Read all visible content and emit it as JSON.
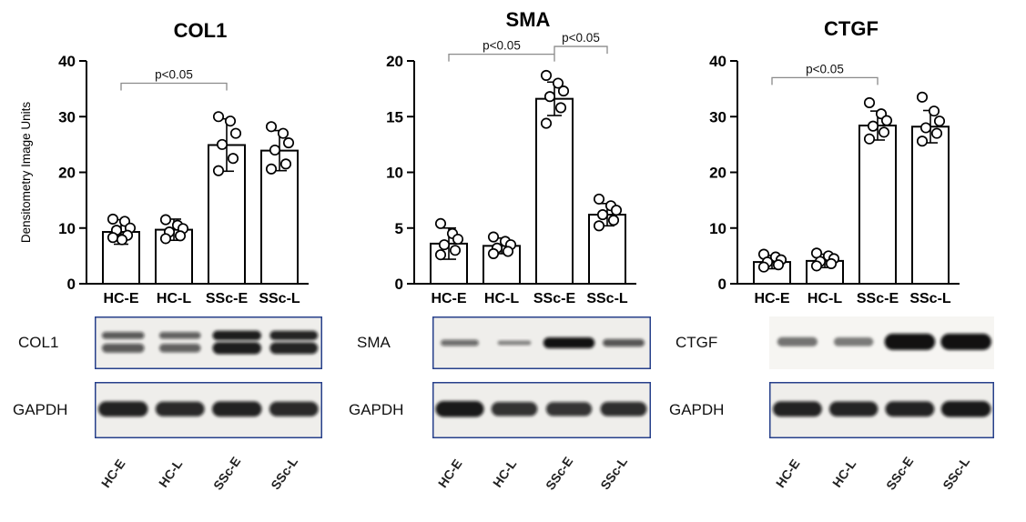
{
  "chart_data": [
    {
      "type": "bar",
      "title": "COL1",
      "ylabel": "Densitometry Image Units",
      "xlabel": "",
      "categories": [
        "HC-E",
        "HC-L",
        "SSc-E",
        "SSc-L"
      ],
      "values": [
        9.3,
        9.7,
        24.9,
        23.9
      ],
      "errors": [
        2.2,
        1.9,
        4.7,
        3.6
      ],
      "points": [
        [
          11.6,
          11.2,
          10.0,
          9.6,
          8.7,
          8.3,
          7.9
        ],
        [
          11.5,
          10.5,
          9.9,
          9.3,
          8.6,
          8.1
        ],
        [
          30.0,
          29.2,
          27.0,
          25.0,
          22.5,
          20.3
        ],
        [
          28.2,
          27.0,
          25.3,
          24.0,
          21.5,
          20.6
        ]
      ],
      "ylim": [
        0,
        40
      ],
      "yticks": [
        0,
        10,
        20,
        30,
        40
      ],
      "grid": false,
      "annotations": [
        {
          "text": "p<0.05",
          "from": 0,
          "to": 2,
          "y": 36
        }
      ]
    },
    {
      "type": "bar",
      "title": "SMA",
      "ylabel": "",
      "xlabel": "",
      "categories": [
        "HC-E",
        "HC-L",
        "SSc-E",
        "SSc-L"
      ],
      "values": [
        3.6,
        3.4,
        16.6,
        6.2
      ],
      "errors": [
        1.4,
        0.7,
        1.5,
        1.0
      ],
      "points": [
        [
          5.4,
          4.5,
          4.0,
          3.5,
          3.0,
          2.6
        ],
        [
          4.2,
          3.8,
          3.5,
          3.2,
          2.9,
          2.7
        ],
        [
          18.7,
          18.0,
          17.3,
          16.8,
          15.8,
          14.4
        ],
        [
          7.6,
          7.0,
          6.6,
          6.2,
          5.7,
          5.2
        ]
      ],
      "ylim": [
        0,
        20
      ],
      "yticks": [
        0,
        5,
        10,
        15,
        20
      ],
      "grid": false,
      "annotations": [
        {
          "text": "p<0.05",
          "from": 0,
          "to": 2,
          "y": 20.6
        },
        {
          "text": "p<0.05",
          "from": 2,
          "to": 3,
          "y": 21.3
        }
      ]
    },
    {
      "type": "bar",
      "title": "CTGF",
      "ylabel": "",
      "xlabel": "",
      "categories": [
        "HC-E",
        "HC-L",
        "SSc-E",
        "SSc-L"
      ],
      "values": [
        3.9,
        4.1,
        28.4,
        28.2
      ],
      "errors": [
        1.2,
        1.2,
        2.6,
        2.9
      ],
      "points": [
        [
          5.3,
          4.8,
          4.3,
          3.9,
          3.4,
          3.0
        ],
        [
          5.5,
          5.0,
          4.5,
          4.0,
          3.6,
          3.2
        ],
        [
          32.5,
          30.5,
          29.3,
          28.3,
          27.2,
          26.0
        ],
        [
          33.5,
          31.0,
          29.2,
          28.0,
          27.0,
          25.6
        ]
      ],
      "ylim": [
        0,
        40
      ],
      "yticks": [
        0,
        10,
        20,
        30,
        40
      ],
      "grid": false,
      "annotations": [
        {
          "text": "p<0.05",
          "from": 0,
          "to": 2,
          "y": 37
        }
      ]
    }
  ],
  "blots": {
    "lane_labels": [
      "HC-E",
      "HC-L",
      "SSc-E",
      "SSc-L"
    ],
    "panels": [
      {
        "rows": [
          {
            "label": "COL1",
            "style": "doublet",
            "bordered": true,
            "intensities": [
              0.55,
              0.5,
              0.92,
              0.88
            ]
          },
          {
            "label": "GAPDH",
            "style": "thick",
            "bordered": true,
            "intensities": [
              0.9,
              0.86,
              0.9,
              0.86
            ]
          }
        ]
      },
      {
        "rows": [
          {
            "label": "SMA",
            "style": "thin",
            "bordered": true,
            "intensities": [
              0.42,
              0.22,
              1.0,
              0.58
            ]
          },
          {
            "label": "GAPDH",
            "style": "thick",
            "bordered": true,
            "intensities": [
              0.95,
              0.8,
              0.78,
              0.82
            ]
          }
        ]
      },
      {
        "rows": [
          {
            "label": "CTGF",
            "style": "thick",
            "bordered": false,
            "intensities": [
              0.34,
              0.3,
              1.0,
              1.0
            ]
          },
          {
            "label": "GAPDH",
            "style": "thick",
            "bordered": true,
            "intensities": [
              0.9,
              0.88,
              0.9,
              0.95
            ]
          }
        ]
      }
    ]
  }
}
